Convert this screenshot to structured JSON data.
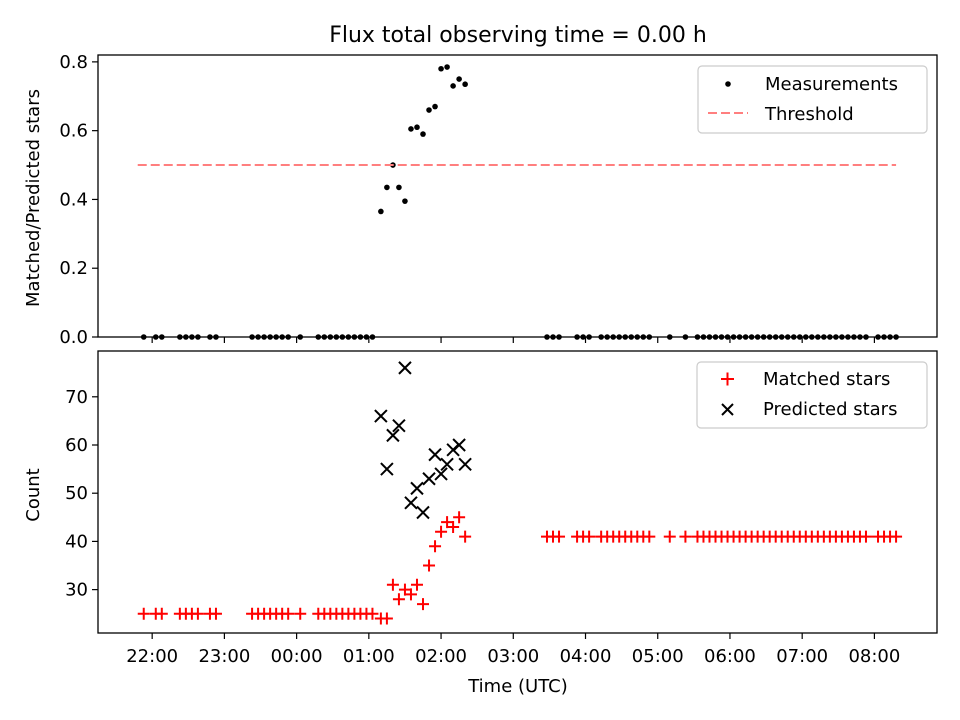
{
  "chart_data": [
    {
      "type": "scatter",
      "title": "Flux total observing time = 0.00 h",
      "xlabel": "",
      "ylabel": "Matched/Predicted stars",
      "ylim": [
        0,
        0.82
      ],
      "xlim": [
        "21:15",
        "08:52"
      ],
      "yticks": [
        0.0,
        0.2,
        0.4,
        0.6,
        0.8
      ],
      "ytick_labels": [
        "0.0",
        "0.2",
        "0.4",
        "0.6",
        "0.8"
      ],
      "legend_position": "top-right",
      "series": [
        {
          "name": "Measurements",
          "marker": "dot",
          "color": "#000000",
          "points": [
            [
              "21:53",
              0.0
            ],
            [
              "22:03",
              0.0
            ],
            [
              "22:08",
              0.0
            ],
            [
              "22:23",
              0.0
            ],
            [
              "22:28",
              0.0
            ],
            [
              "22:33",
              0.0
            ],
            [
              "22:38",
              0.0
            ],
            [
              "22:48",
              0.0
            ],
            [
              "22:53",
              0.0
            ],
            [
              "23:23",
              0.0
            ],
            [
              "23:28",
              0.0
            ],
            [
              "23:33",
              0.0
            ],
            [
              "23:38",
              0.0
            ],
            [
              "23:43",
              0.0
            ],
            [
              "23:48",
              0.0
            ],
            [
              "23:53",
              0.0
            ],
            [
              "24:03",
              0.0
            ],
            [
              "24:18",
              0.0
            ],
            [
              "24:23",
              0.0
            ],
            [
              "24:28",
              0.0
            ],
            [
              "24:33",
              0.0
            ],
            [
              "24:38",
              0.0
            ],
            [
              "24:43",
              0.0
            ],
            [
              "24:48",
              0.0
            ],
            [
              "24:53",
              0.0
            ],
            [
              "24:58",
              0.0
            ],
            [
              "25:03",
              0.0
            ],
            [
              "25:10",
              0.365
            ],
            [
              "25:15",
              0.435
            ],
            [
              "25:20",
              0.5
            ],
            [
              "25:25",
              0.435
            ],
            [
              "25:30",
              0.395
            ],
            [
              "25:35",
              0.605
            ],
            [
              "25:40",
              0.61
            ],
            [
              "25:45",
              0.59
            ],
            [
              "25:50",
              0.66
            ],
            [
              "25:55",
              0.67
            ],
            [
              "26:00",
              0.78
            ],
            [
              "26:05",
              0.785
            ],
            [
              "26:10",
              0.73
            ],
            [
              "26:15",
              0.75
            ],
            [
              "26:20",
              0.735
            ],
            [
              "27:28",
              0.0
            ],
            [
              "27:33",
              0.0
            ],
            [
              "27:38",
              0.0
            ],
            [
              "27:53",
              0.0
            ],
            [
              "27:58",
              0.0
            ],
            [
              "28:03",
              0.0
            ],
            [
              "28:13",
              0.0
            ],
            [
              "28:18",
              0.0
            ],
            [
              "28:23",
              0.0
            ],
            [
              "28:28",
              0.0
            ],
            [
              "28:33",
              0.0
            ],
            [
              "28:38",
              0.0
            ],
            [
              "28:43",
              0.0
            ],
            [
              "28:48",
              0.0
            ],
            [
              "28:53",
              0.0
            ],
            [
              "29:10",
              0.0
            ],
            [
              "29:23",
              0.0
            ],
            [
              "29:33",
              0.0
            ],
            [
              "29:38",
              0.0
            ],
            [
              "29:43",
              0.0
            ],
            [
              "29:48",
              0.0
            ],
            [
              "29:53",
              0.0
            ],
            [
              "29:58",
              0.0
            ],
            [
              "30:03",
              0.0
            ],
            [
              "30:08",
              0.0
            ],
            [
              "30:13",
              0.0
            ],
            [
              "30:18",
              0.0
            ],
            [
              "30:23",
              0.0
            ],
            [
              "30:28",
              0.0
            ],
            [
              "30:33",
              0.0
            ],
            [
              "30:38",
              0.0
            ],
            [
              "30:43",
              0.0
            ],
            [
              "30:48",
              0.0
            ],
            [
              "30:53",
              0.0
            ],
            [
              "30:58",
              0.0
            ],
            [
              "31:03",
              0.0
            ],
            [
              "31:08",
              0.0
            ],
            [
              "31:13",
              0.0
            ],
            [
              "31:18",
              0.0
            ],
            [
              "31:23",
              0.0
            ],
            [
              "31:28",
              0.0
            ],
            [
              "31:33",
              0.0
            ],
            [
              "31:38",
              0.0
            ],
            [
              "31:43",
              0.0
            ],
            [
              "31:48",
              0.0
            ],
            [
              "31:53",
              0.0
            ],
            [
              "32:03",
              0.0
            ],
            [
              "32:08",
              0.0
            ],
            [
              "32:13",
              0.0
            ],
            [
              "32:18",
              0.0
            ]
          ]
        },
        {
          "name": "Threshold",
          "type": "line",
          "style": "dashed",
          "color": "#ff7f7f",
          "points": [
            [
              "21:48",
              0.5
            ],
            [
              "32:18",
              0.5
            ]
          ]
        }
      ]
    },
    {
      "type": "scatter",
      "title": "",
      "xlabel": "Time (UTC)",
      "ylabel": "Count",
      "ylim": [
        21,
        79.5
      ],
      "xlim": [
        "21:15",
        "08:52"
      ],
      "yticks": [
        30,
        40,
        50,
        60,
        70
      ],
      "ytick_labels": [
        "30",
        "40",
        "50",
        "60",
        "70"
      ],
      "xtick_labels": [
        "22:00",
        "23:00",
        "00:00",
        "01:00",
        "02:00",
        "03:00",
        "04:00",
        "05:00",
        "06:00",
        "07:00",
        "08:00"
      ],
      "legend_position": "top-right",
      "series": [
        {
          "name": "Matched stars",
          "marker": "plus",
          "color": "#ff0000",
          "points": [
            [
              "21:53",
              25
            ],
            [
              "22:03",
              25
            ],
            [
              "22:08",
              25
            ],
            [
              "22:23",
              25
            ],
            [
              "22:28",
              25
            ],
            [
              "22:33",
              25
            ],
            [
              "22:38",
              25
            ],
            [
              "22:48",
              25
            ],
            [
              "22:53",
              25
            ],
            [
              "23:23",
              25
            ],
            [
              "23:28",
              25
            ],
            [
              "23:33",
              25
            ],
            [
              "23:38",
              25
            ],
            [
              "23:43",
              25
            ],
            [
              "23:48",
              25
            ],
            [
              "23:53",
              25
            ],
            [
              "24:03",
              25
            ],
            [
              "24:18",
              25
            ],
            [
              "24:23",
              25
            ],
            [
              "24:28",
              25
            ],
            [
              "24:33",
              25
            ],
            [
              "24:38",
              25
            ],
            [
              "24:43",
              25
            ],
            [
              "24:48",
              25
            ],
            [
              "24:53",
              25
            ],
            [
              "24:58",
              25
            ],
            [
              "25:03",
              25
            ],
            [
              "25:10",
              24
            ],
            [
              "25:15",
              24
            ],
            [
              "25:20",
              31
            ],
            [
              "25:25",
              28
            ],
            [
              "25:30",
              30
            ],
            [
              "25:35",
              29
            ],
            [
              "25:40",
              31
            ],
            [
              "25:45",
              27
            ],
            [
              "25:50",
              35
            ],
            [
              "25:55",
              39
            ],
            [
              "26:00",
              42
            ],
            [
              "26:05",
              44
            ],
            [
              "26:10",
              43
            ],
            [
              "26:15",
              45
            ],
            [
              "26:20",
              41
            ],
            [
              "27:28",
              41
            ],
            [
              "27:33",
              41
            ],
            [
              "27:38",
              41
            ],
            [
              "27:53",
              41
            ],
            [
              "27:58",
              41
            ],
            [
              "28:03",
              41
            ],
            [
              "28:13",
              41
            ],
            [
              "28:18",
              41
            ],
            [
              "28:23",
              41
            ],
            [
              "28:28",
              41
            ],
            [
              "28:33",
              41
            ],
            [
              "28:38",
              41
            ],
            [
              "28:43",
              41
            ],
            [
              "28:48",
              41
            ],
            [
              "28:53",
              41
            ],
            [
              "29:10",
              41
            ],
            [
              "29:23",
              41
            ],
            [
              "29:33",
              41
            ],
            [
              "29:38",
              41
            ],
            [
              "29:43",
              41
            ],
            [
              "29:48",
              41
            ],
            [
              "29:53",
              41
            ],
            [
              "29:58",
              41
            ],
            [
              "30:03",
              41
            ],
            [
              "30:08",
              41
            ],
            [
              "30:13",
              41
            ],
            [
              "30:18",
              41
            ],
            [
              "30:23",
              41
            ],
            [
              "30:28",
              41
            ],
            [
              "30:33",
              41
            ],
            [
              "30:38",
              41
            ],
            [
              "30:43",
              41
            ],
            [
              "30:48",
              41
            ],
            [
              "30:53",
              41
            ],
            [
              "30:58",
              41
            ],
            [
              "31:03",
              41
            ],
            [
              "31:08",
              41
            ],
            [
              "31:13",
              41
            ],
            [
              "31:18",
              41
            ],
            [
              "31:23",
              41
            ],
            [
              "31:28",
              41
            ],
            [
              "31:33",
              41
            ],
            [
              "31:38",
              41
            ],
            [
              "31:43",
              41
            ],
            [
              "31:48",
              41
            ],
            [
              "31:53",
              41
            ],
            [
              "32:03",
              41
            ],
            [
              "32:08",
              41
            ],
            [
              "32:13",
              41
            ],
            [
              "32:18",
              41
            ]
          ]
        },
        {
          "name": "Predicted stars",
          "marker": "x",
          "color": "#000000",
          "points": [
            [
              "25:10",
              66
            ],
            [
              "25:15",
              55
            ],
            [
              "25:20",
              62
            ],
            [
              "25:25",
              64
            ],
            [
              "25:30",
              76
            ],
            [
              "25:35",
              48
            ],
            [
              "25:40",
              51
            ],
            [
              "25:45",
              46
            ],
            [
              "25:50",
              53
            ],
            [
              "25:55",
              58
            ],
            [
              "26:00",
              54
            ],
            [
              "26:05",
              56
            ],
            [
              "26:10",
              59
            ],
            [
              "26:15",
              60
            ],
            [
              "26:20",
              56
            ]
          ]
        }
      ]
    }
  ]
}
